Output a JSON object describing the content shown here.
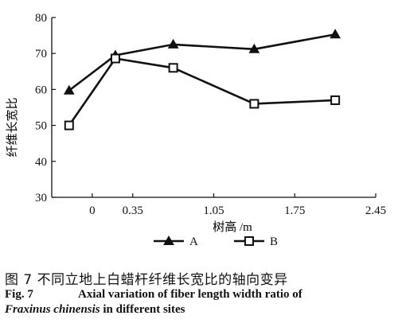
{
  "chart_data": {
    "type": "line",
    "x_ticks": [
      "0",
      "0.35",
      "1.05",
      "1.75",
      "2.45"
    ],
    "y_ticks": [
      "30",
      "40",
      "50",
      "60",
      "70",
      "80"
    ],
    "xlabel": "树高 /m",
    "ylabel": "纤维长宽比",
    "ylim": [
      30,
      80
    ],
    "x": [
      -0.2,
      0.2,
      0.7,
      1.4,
      2.1
    ],
    "series": [
      {
        "name": "A",
        "marker": "triangle",
        "values": [
          59.7,
          69.5,
          72.5,
          71.2,
          75.3
        ]
      },
      {
        "name": "B",
        "marker": "square",
        "values": [
          50.0,
          68.6,
          66.0,
          56.0,
          57.0
        ]
      }
    ],
    "legend_position": "bottom-center"
  },
  "caption": {
    "cn": "图 7   不同立地上白蜡杆纤维长宽比的轴向变异",
    "en_number": "Fig. 7",
    "en_line1": "Axial variation of fiber length width ratio of",
    "en_species": "Fraxinus chinensis",
    "en_line2": " in different sites"
  },
  "colors": {
    "line": "#111111",
    "background": "#ffffff"
  }
}
